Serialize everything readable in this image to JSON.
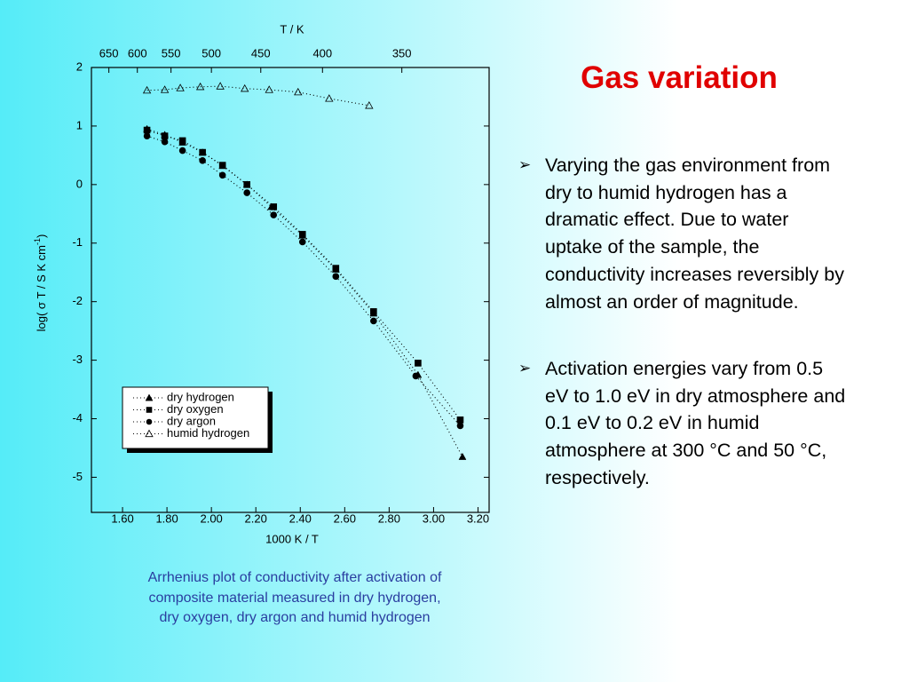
{
  "title": "Gas variation",
  "bullets": [
    "Varying the gas environment from dry to humid hydrogen has a dramatic effect. Due to water uptake of the sample, the conductivity increases reversibly by almost an order of magnitude.",
    "Activation energies vary from 0.5 eV to 1.0 eV in dry atmosphere and 0.1 eV to 0.2 eV in humid atmosphere at 300 °C and 50 °C, respectively."
  ],
  "caption": [
    "Arrhenius plot of conductivity after activation of",
    "composite material measured in dry hydrogen,",
    "dry oxygen, dry argon and humid hydrogen"
  ],
  "chart_data": {
    "type": "scatter",
    "xlabel": "1000 K / T",
    "ylabel": [
      "log( σ T / S K cm",
      "-1",
      ")"
    ],
    "x2label": "T / K",
    "xlim": [
      1.46,
      3.25
    ],
    "ylim": [
      -5.6,
      2
    ],
    "xticks": [
      {
        "value": 1.6,
        "label": "1.60"
      },
      {
        "value": 1.8,
        "label": "1.80"
      },
      {
        "value": 2.0,
        "label": "2.00"
      },
      {
        "value": 2.2,
        "label": "2.20"
      },
      {
        "value": 2.4,
        "label": "2.40"
      },
      {
        "value": 2.6,
        "label": "2.60"
      },
      {
        "value": 2.8,
        "label": "2.80"
      },
      {
        "value": 3.0,
        "label": "3.00"
      },
      {
        "value": 3.2,
        "label": "3.20"
      }
    ],
    "yticks": [
      2,
      1,
      0,
      -1,
      -2,
      -3,
      -4,
      -5
    ],
    "x2ticks": [
      650,
      600,
      550,
      500,
      450,
      400,
      350
    ],
    "series": [
      {
        "name": "dry hydrogen",
        "marker": "triangle",
        "color": "#000000",
        "x": [
          1.71,
          1.79,
          1.87,
          1.96,
          2.05,
          2.16,
          2.27,
          2.41,
          2.56,
          2.73,
          2.93,
          3.13
        ],
        "values": [
          0.95,
          0.85,
          0.72,
          0.55,
          0.32,
          0.0,
          -0.38,
          -0.87,
          -1.45,
          -2.2,
          -3.25,
          -4.65
        ]
      },
      {
        "name": "dry oxygen",
        "marker": "square",
        "color": "#000000",
        "x": [
          1.71,
          1.79,
          1.87,
          1.96,
          2.05,
          2.16,
          2.28,
          2.41,
          2.56,
          2.73,
          2.93,
          3.12
        ],
        "values": [
          0.93,
          0.83,
          0.75,
          0.55,
          0.33,
          0.0,
          -0.38,
          -0.85,
          -1.43,
          -2.17,
          -3.05,
          -4.02
        ]
      },
      {
        "name": "dry argon",
        "marker": "circle",
        "color": "#000000",
        "x": [
          1.71,
          1.79,
          1.87,
          1.96,
          2.05,
          2.16,
          2.28,
          2.41,
          2.56,
          2.73,
          2.92,
          3.12
        ],
        "values": [
          0.83,
          0.73,
          0.58,
          0.41,
          0.16,
          -0.14,
          -0.52,
          -0.98,
          -1.57,
          -2.33,
          -3.27,
          -4.12
        ]
      },
      {
        "name": "humid hydrogen",
        "marker": "triangle-open",
        "color": "#000000",
        "x": [
          1.71,
          1.79,
          1.86,
          1.95,
          2.04,
          2.15,
          2.26,
          2.39,
          2.53,
          2.71
        ],
        "values": [
          1.61,
          1.62,
          1.65,
          1.67,
          1.68,
          1.64,
          1.62,
          1.58,
          1.47,
          1.35
        ]
      }
    ]
  }
}
